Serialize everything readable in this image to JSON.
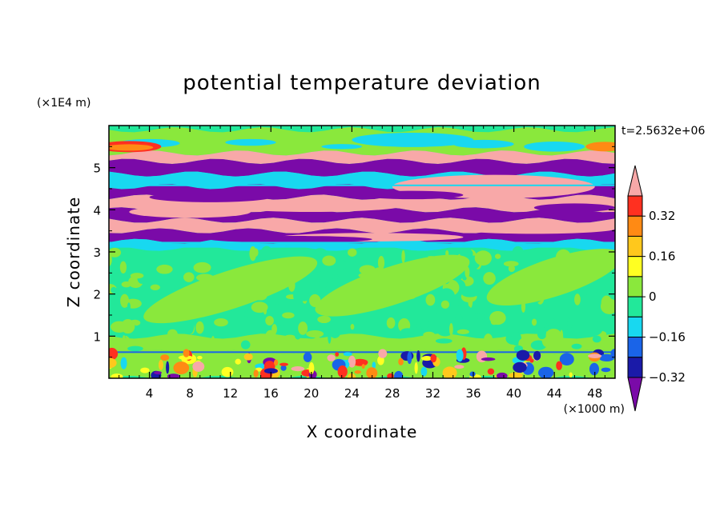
{
  "chart_data": {
    "type": "heatmap",
    "title": "potential temperature deviation",
    "xlabel": "X coordinate",
    "ylabel": "Z coordinate",
    "x_units": "(×1000 m)",
    "y_units": "(×1E4 m)",
    "time_label": "t=2.5632e+06",
    "xlim": [
      0,
      50
    ],
    "ylim": [
      0,
      6
    ],
    "x_ticks": [
      4,
      8,
      12,
      16,
      20,
      24,
      28,
      32,
      36,
      40,
      44,
      48
    ],
    "x_tick_labels": [
      "4",
      "8",
      "12",
      "16",
      "20",
      "24",
      "28",
      "32",
      "36",
      "40",
      "44",
      "48"
    ],
    "y_ticks": [
      1,
      2,
      3,
      4,
      5
    ],
    "y_tick_labels": [
      "1",
      "2",
      "3",
      "4",
      "5"
    ],
    "colorbar": {
      "levels": [
        -0.4,
        -0.32,
        -0.24,
        -0.16,
        -0.08,
        0,
        0.08,
        0.16,
        0.24,
        0.32,
        0.4
      ],
      "tick_values": [
        0.32,
        0.16,
        0,
        -0.16,
        -0.32
      ],
      "tick_labels": [
        "0.32",
        "0.16",
        "0",
        "−0.16",
        "−0.32"
      ],
      "colors": [
        "#7a0aa8",
        "#1a1aa8",
        "#1a64e8",
        "#18d8f0",
        "#22e89a",
        "#8ae83c",
        "#ffff22",
        "#ffc81c",
        "#ff8a14",
        "#ff3020",
        "#f8a8a8"
      ],
      "extend": "both"
    },
    "bands": [
      {
        "z": [
          5.35,
          5.9
        ],
        "level": 0.0
      },
      {
        "z": [
          5.15,
          5.35
        ],
        "level": 0.4
      },
      {
        "z": [
          4.85,
          5.15
        ],
        "level": -0.4
      },
      {
        "z": [
          4.55,
          4.85
        ],
        "level": -0.16
      },
      {
        "z": [
          4.3,
          4.55
        ],
        "level": -0.4
      },
      {
        "z": [
          4.0,
          4.3
        ],
        "level": 0.4
      },
      {
        "z": [
          3.75,
          4.0
        ],
        "level": -0.4
      },
      {
        "z": [
          3.5,
          3.75
        ],
        "level": 0.4
      },
      {
        "z": [
          3.25,
          3.5
        ],
        "level": -0.4
      },
      {
        "z": [
          3.08,
          3.25
        ],
        "level": -0.16
      },
      {
        "z": [
          1.0,
          3.08
        ],
        "level": -0.08
      },
      {
        "z": [
          0.62,
          1.0
        ],
        "level": 0.0
      },
      {
        "z": [
          0.0,
          0.62
        ],
        "level": 0.0
      }
    ]
  }
}
